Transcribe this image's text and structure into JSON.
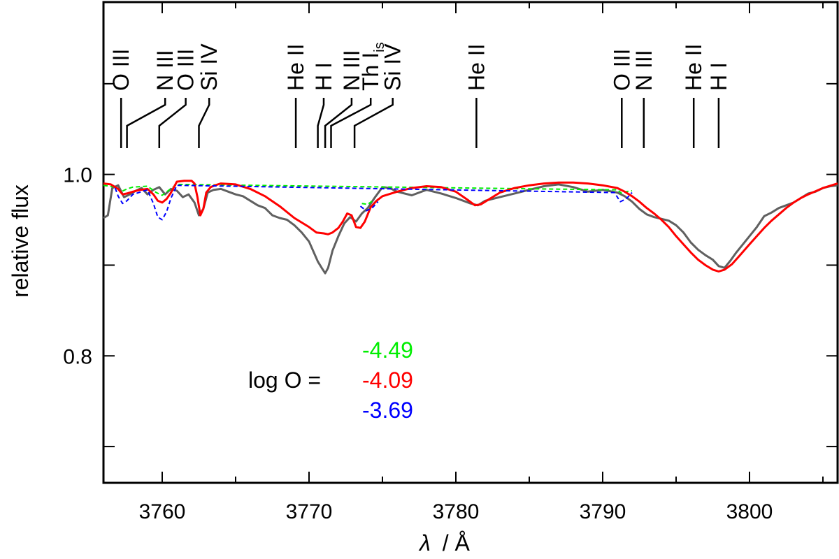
{
  "chart_data": {
    "type": "line",
    "xlabel_symbol": "λ",
    "xlabel_unit": "/ Å",
    "ylabel": "relative flux",
    "xlim": [
      3756,
      3806
    ],
    "ylim": [
      0.66,
      1.19
    ],
    "x_ticks": [
      3760,
      3770,
      3780,
      3790,
      3800
    ],
    "x_tick_labels": [
      "3760",
      "3770",
      "3780",
      "3790",
      "3800"
    ],
    "x_minor_ticks": [
      3765,
      3775,
      3785,
      3795,
      3805
    ],
    "y_ticks": [
      0.7,
      0.8,
      0.9,
      1.0,
      1.1
    ],
    "y_tick_labels": [
      "0.8",
      "1.0"
    ],
    "y_labeled_ticks": [
      0.8,
      1.0
    ],
    "grid": false,
    "line_ids": [
      {
        "label": "O III",
        "wavelength": 3757.2,
        "label_at": 3757.2
      },
      {
        "label": "N III",
        "wavelength": 3757.6,
        "label_at": 3760.2
      },
      {
        "label": "O III",
        "wavelength": 3759.8,
        "label_at": 3761.6
      },
      {
        "label": "Si IV",
        "wavelength": 3762.5,
        "label_at": 3763.2
      },
      {
        "label": "He II",
        "wavelength": 3769.1,
        "label_at": 3769.1
      },
      {
        "label": "H I",
        "wavelength": 3770.6,
        "label_at": 3771.0
      },
      {
        "label": "N III",
        "wavelength": 3771.1,
        "label_at": 3772.9
      },
      {
        "label": "Th I",
        "subscript": "is",
        "wavelength": 3771.5,
        "label_at": 3774.2
      },
      {
        "label": "Si IV",
        "wavelength": 3773.1,
        "label_at": 3775.7
      },
      {
        "label": "He II",
        "wavelength": 3781.4,
        "label_at": 3781.4
      },
      {
        "label": "O III",
        "wavelength": 3791.3,
        "label_at": 3791.3
      },
      {
        "label": "N III",
        "wavelength": 3792.8,
        "label_at": 3792.8
      },
      {
        "label": "He II",
        "wavelength": 3796.2,
        "label_at": 3796.2
      },
      {
        "label": "H I",
        "wavelength": 3797.9,
        "label_at": 3797.9
      }
    ],
    "legend": {
      "prefix": "log O =",
      "entries": [
        {
          "value": "-4.49",
          "color": "#00ee00"
        },
        {
          "value": "-4.09",
          "color": "#ff0000"
        },
        {
          "value": "-3.69",
          "color": "#0000ff"
        }
      ]
    },
    "series": [
      {
        "color": "#606060",
        "style": "solid",
        "x": [
          3756.0,
          3756.3,
          3756.6,
          3757.0,
          3757.4,
          3757.8,
          3758.2,
          3758.6,
          3759.0,
          3759.4,
          3759.8,
          3760.2,
          3760.6,
          3761.0,
          3761.4,
          3761.8,
          3762.2,
          3762.5,
          3762.8,
          3763.1,
          3763.5,
          3764.0,
          3764.5,
          3765.0,
          3765.5,
          3766.0,
          3766.5,
          3767.0,
          3767.5,
          3768.0,
          3768.5,
          3769.0,
          3769.5,
          3770.0,
          3770.3,
          3770.6,
          3770.9,
          3771.1,
          3771.3,
          3771.6,
          3772.0,
          3772.4,
          3772.8,
          3773.2,
          3773.6,
          3774.0,
          3774.5,
          3775.0,
          3775.5,
          3776.0,
          3777.0,
          3778.0,
          3779.0,
          3780.0,
          3781.0,
          3781.5,
          3782.0,
          3783.0,
          3784.0,
          3785.0,
          3786.0,
          3787.0,
          3788.0,
          3789.0,
          3790.0,
          3791.0,
          3791.5,
          3792.0,
          3792.5,
          3793.0,
          3793.5,
          3794.0,
          3794.5,
          3795.0,
          3795.5,
          3796.0,
          3796.5,
          3797.0,
          3797.5,
          3797.9,
          3798.3,
          3798.7,
          3799.1,
          3799.5,
          3800.0,
          3800.5,
          3801.0,
          3801.5,
          3802.0,
          3802.5,
          3803.0,
          3803.5,
          3804.0,
          3804.5,
          3805.0,
          3805.5,
          3806.0
        ],
        "y": [
          0.952,
          0.955,
          0.985,
          0.988,
          0.975,
          0.978,
          0.982,
          0.985,
          0.978,
          0.983,
          0.986,
          0.978,
          0.984,
          0.982,
          0.975,
          0.978,
          0.969,
          0.955,
          0.962,
          0.98,
          0.983,
          0.984,
          0.981,
          0.978,
          0.976,
          0.971,
          0.966,
          0.963,
          0.955,
          0.952,
          0.95,
          0.944,
          0.936,
          0.926,
          0.915,
          0.904,
          0.896,
          0.891,
          0.897,
          0.916,
          0.932,
          0.946,
          0.953,
          0.948,
          0.957,
          0.963,
          0.975,
          0.986,
          0.985,
          0.981,
          0.977,
          0.983,
          0.979,
          0.974,
          0.968,
          0.966,
          0.971,
          0.975,
          0.979,
          0.983,
          0.987,
          0.989,
          0.986,
          0.981,
          0.983,
          0.98,
          0.976,
          0.97,
          0.962,
          0.956,
          0.953,
          0.951,
          0.949,
          0.944,
          0.936,
          0.925,
          0.917,
          0.911,
          0.906,
          0.899,
          0.897,
          0.905,
          0.914,
          0.922,
          0.932,
          0.942,
          0.954,
          0.958,
          0.963,
          0.966,
          0.969,
          0.974,
          0.979,
          0.981,
          0.985,
          0.987,
          0.988
        ]
      },
      {
        "name": "-4.49",
        "color": "#00ee00",
        "style": "dashed",
        "x": [
          3756.0,
          3756.8,
          3757.2,
          3757.6,
          3758.0,
          3759.0,
          3759.6,
          3760.0,
          3760.4,
          3761.0,
          3791.0,
          3791.3,
          3791.6,
          3792.0,
          3773.6,
          3774.0,
          3774.4
        ],
        "y": [
          0.988,
          0.986,
          0.981,
          0.984,
          0.986,
          0.987,
          0.98,
          0.977,
          0.982,
          0.989,
          0.983,
          0.979,
          0.981,
          0.982,
          0.968,
          0.967,
          0.972
        ]
      },
      {
        "name": "-4.09",
        "color": "#ff0000",
        "style": "solid",
        "x": [
          3756.0,
          3756.5,
          3757.0,
          3757.3,
          3757.6,
          3758.0,
          3758.5,
          3759.0,
          3759.4,
          3759.7,
          3760.0,
          3760.3,
          3760.6,
          3761.0,
          3761.5,
          3762.0,
          3762.2,
          3762.4,
          3762.6,
          3762.8,
          3763.0,
          3763.3,
          3763.6,
          3764.0,
          3765.0,
          3766.0,
          3767.0,
          3768.0,
          3769.0,
          3770.0,
          3770.5,
          3771.0,
          3771.3,
          3771.6,
          3772.0,
          3772.3,
          3772.6,
          3772.9,
          3773.2,
          3773.5,
          3773.8,
          3774.2,
          3774.6,
          3775.0,
          3776.0,
          3777.0,
          3778.0,
          3779.0,
          3780.0,
          3780.8,
          3781.3,
          3781.7,
          3782.3,
          3783.0,
          3784.0,
          3785.0,
          3786.0,
          3787.0,
          3788.0,
          3789.0,
          3790.0,
          3791.0,
          3791.5,
          3792.0,
          3792.5,
          3793.0,
          3793.5,
          3794.0,
          3794.5,
          3795.0,
          3795.5,
          3796.0,
          3796.5,
          3797.0,
          3797.5,
          3797.9,
          3798.3,
          3798.8,
          3799.3,
          3800.0,
          3800.5,
          3801.0,
          3801.5,
          3802.0,
          3802.5,
          3803.0,
          3803.5,
          3804.0,
          3805.0,
          3806.0
        ],
        "y": [
          0.99,
          0.989,
          0.984,
          0.978,
          0.979,
          0.981,
          0.983,
          0.984,
          0.978,
          0.971,
          0.969,
          0.973,
          0.98,
          0.992,
          0.993,
          0.993,
          0.99,
          0.975,
          0.955,
          0.962,
          0.98,
          0.986,
          0.988,
          0.99,
          0.989,
          0.984,
          0.976,
          0.965,
          0.952,
          0.942,
          0.936,
          0.935,
          0.934,
          0.936,
          0.941,
          0.948,
          0.957,
          0.955,
          0.942,
          0.941,
          0.948,
          0.964,
          0.971,
          0.976,
          0.981,
          0.985,
          0.987,
          0.986,
          0.981,
          0.972,
          0.966,
          0.967,
          0.973,
          0.98,
          0.985,
          0.988,
          0.99,
          0.991,
          0.991,
          0.99,
          0.988,
          0.985,
          0.981,
          0.976,
          0.97,
          0.963,
          0.957,
          0.95,
          0.942,
          0.932,
          0.923,
          0.914,
          0.906,
          0.9,
          0.895,
          0.893,
          0.895,
          0.901,
          0.91,
          0.923,
          0.932,
          0.941,
          0.949,
          0.956,
          0.963,
          0.969,
          0.974,
          0.978,
          0.985,
          0.99
        ]
      },
      {
        "name": "-3.69",
        "color": "#0000ff",
        "style": "dashed",
        "x": [
          3756.8,
          3757.0,
          3757.3,
          3757.6,
          3758.0,
          3759.0,
          3759.4,
          3759.7,
          3760.0,
          3760.3,
          3760.6,
          3761.0,
          3790.8,
          3791.2,
          3791.6,
          3792.0,
          3773.5,
          3773.9,
          3774.3,
          3774.7
        ],
        "y": [
          0.985,
          0.976,
          0.968,
          0.971,
          0.978,
          0.983,
          0.968,
          0.953,
          0.95,
          0.959,
          0.974,
          0.988,
          0.98,
          0.97,
          0.973,
          0.98,
          0.965,
          0.96,
          0.963,
          0.97
        ]
      }
    ]
  }
}
